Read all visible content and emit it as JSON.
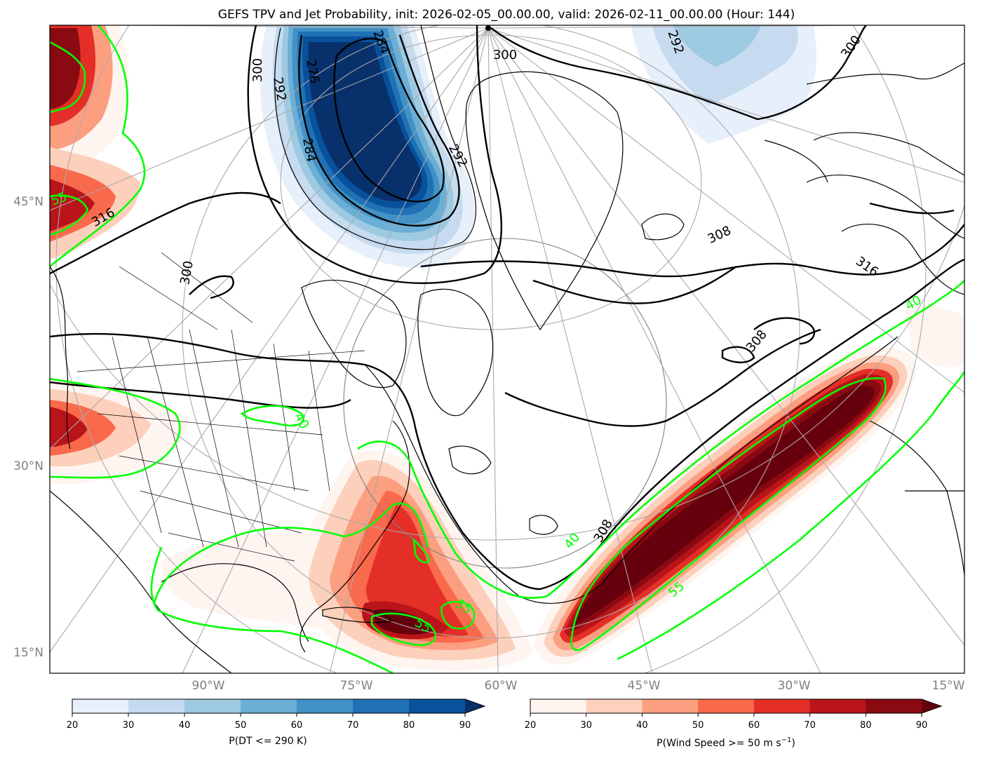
{
  "title": "GEFS TPV and Jet Probability, init: 2026-02-05_00.00.00, valid: 2026-02-11_00.00.00 (Hour: 144)",
  "lat_labels": [
    "45°N",
    "30°N",
    "15°N"
  ],
  "lon_labels": [
    "90°W",
    "75°W",
    "60°W",
    "45°W",
    "30°W",
    "15°W"
  ],
  "theta_contour_labels": [
    "300",
    "292",
    "276",
    "284",
    "284",
    "292",
    "300",
    "292",
    "300",
    "316",
    "300",
    "308",
    "316",
    "308",
    "308"
  ],
  "jet_contour_labels": [
    "55",
    "40",
    "40",
    "55",
    "55",
    "55",
    "40"
  ],
  "colorbar_tpv": {
    "ticks": [
      "20",
      "30",
      "40",
      "50",
      "60",
      "70",
      "80",
      "90"
    ],
    "label": "P(DT <= 290 K)",
    "colors": [
      "#e7f0fa",
      "#c6dbef",
      "#9ecae1",
      "#6baed6",
      "#4292c6",
      "#2171b5",
      "#08519c",
      "#08306b"
    ]
  },
  "colorbar_jet": {
    "ticks": [
      "20",
      "30",
      "40",
      "50",
      "60",
      "70",
      "80",
      "90"
    ],
    "label_main": "P(Wind Speed >= 50 m s",
    "label_sup": "−1",
    "label_end": ")",
    "colors": [
      "#fff5f0",
      "#fdd0bc",
      "#fc9f81",
      "#f9694c",
      "#e32f27",
      "#b81419",
      "#8a0a12",
      "#67000d"
    ]
  },
  "colors": {
    "jet_contour": "#00ff00",
    "theta_contour": "#000000",
    "graticule": "#a9a9a9"
  }
}
